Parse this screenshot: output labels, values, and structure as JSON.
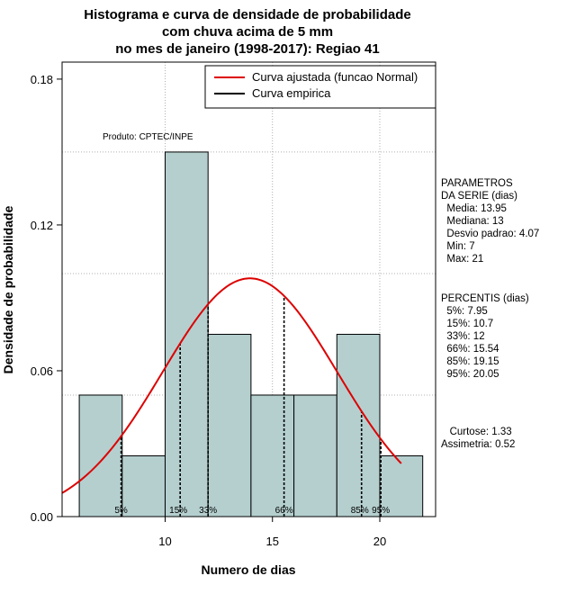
{
  "chart_data": {
    "type": "bar",
    "title": [
      "Histograma e curva de densidade de probabilidade",
      "com chuva acima de 5 mm",
      "no mes de janeiro (1998-2017): Regiao 41"
    ],
    "xlabel": "Numero de dias",
    "ylabel": "Densidade de probabilidade",
    "xlim": [
      5.2,
      22.6
    ],
    "ylim": [
      0,
      0.187
    ],
    "x_ticks": [
      10,
      15,
      20
    ],
    "y_ticks": [
      0.0,
      0.06,
      0.12,
      0.18
    ],
    "y_tick_labels": [
      "0.00",
      "0.06",
      "0.12",
      "0.18"
    ],
    "grid": true,
    "bars": [
      {
        "x0": 6,
        "x1": 8,
        "value": 0.05
      },
      {
        "x0": 8,
        "x1": 10,
        "value": 0.025
      },
      {
        "x0": 10,
        "x1": 12,
        "value": 0.15
      },
      {
        "x0": 12,
        "x1": 14,
        "value": 0.075
      },
      {
        "x0": 14,
        "x1": 16,
        "value": 0.05
      },
      {
        "x0": 16,
        "x1": 18,
        "value": 0.05
      },
      {
        "x0": 18,
        "x1": 20,
        "value": 0.075
      },
      {
        "x0": 20,
        "x1": 22,
        "value": 0.025
      }
    ],
    "fitted_curve": {
      "name": "Curva ajustada (funcao Normal)",
      "distribution": "normal",
      "mean": 13.95,
      "sd": 4.07,
      "x_range": [
        5.2,
        21
      ],
      "color": "#dd0000"
    },
    "empirical_curve": {
      "name": "Curva empirica",
      "color": "#000000"
    },
    "percentile_lines": [
      {
        "label": "5%",
        "x": 7.95
      },
      {
        "label": "15%",
        "x": 10.7
      },
      {
        "label": "33%",
        "x": 12
      },
      {
        "label": "66%",
        "x": 15.54
      },
      {
        "label": "85%",
        "x": 19.15
      },
      {
        "label": "95%",
        "x": 20.05
      }
    ],
    "legend_position": "top-right",
    "annotation": "Produto: CPTEC/INPE",
    "colors": {
      "bar_fill": "#b5cfcf",
      "bar_stroke": "#000000",
      "grid": "#b0b0b0"
    }
  },
  "sidebar": {
    "parametros": [
      "PARAMETROS",
      "DA SERIE (dias)",
      "  Media: 13.95",
      "  Mediana: 13",
      "  Desvio padrao: 4.07",
      "  Min: 7",
      "  Max: 21"
    ],
    "percentis": [
      "PERCENTIS (dias)",
      "  5%: 7.95",
      "  15%: 10.7",
      "  33%: 12",
      "  66%: 15.54",
      "  85%: 19.15",
      "  95%: 20.05"
    ],
    "stats": [
      "   Curtose: 1.33",
      "Assimetria: 0.52"
    ]
  }
}
